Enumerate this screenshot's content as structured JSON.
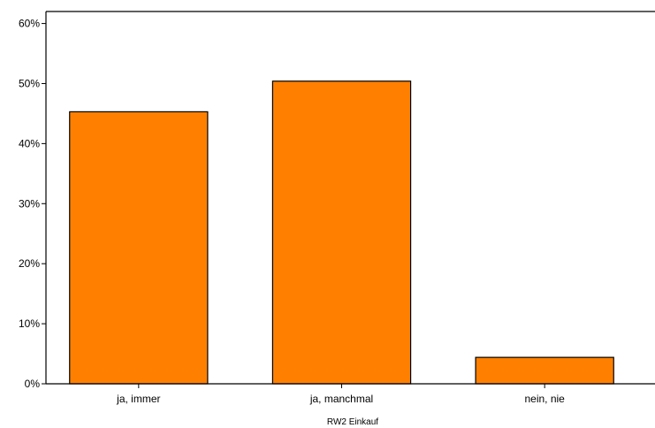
{
  "chart_data": {
    "type": "bar",
    "title": "",
    "xlabel": "RW2  Einkauf",
    "ylabel": "",
    "categories": [
      "ja, immer",
      "ja, manchmal",
      "nein, nie"
    ],
    "values": [
      45.3,
      50.4,
      4.4
    ],
    "unit": "%",
    "ylim": [
      0,
      62
    ],
    "yticks": [
      0,
      10,
      20,
      30,
      40,
      50,
      60
    ],
    "ytick_labels": [
      "0%",
      "10%",
      "20%",
      "30%",
      "40%",
      "50%",
      "60%"
    ],
    "grid": false,
    "legend": "none",
    "colors": {
      "bar_fill": "#ff8000",
      "bar_stroke": "#000000",
      "axis": "#000000",
      "background": "#ffffff"
    }
  }
}
